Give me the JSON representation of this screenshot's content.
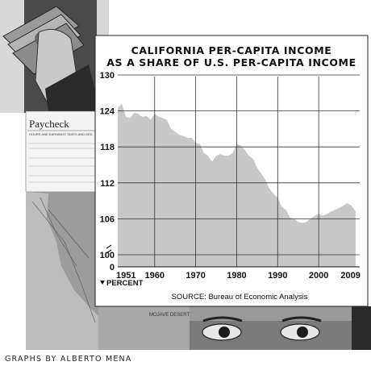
{
  "chart_data": {
    "type": "area",
    "title_lines": [
      "CALIFORNIA PER-CAPITA INCOME",
      "AS A SHARE OF U.S. PER-CAPITA INCOME"
    ],
    "y_unit_label": "PERCENT",
    "source": "SOURCE: Bureau of Economic Analysis",
    "ylim": [
      100,
      130
    ],
    "yticks": [
      100,
      106,
      112,
      118,
      124,
      130
    ],
    "y_break_label": "0",
    "xlim": [
      1951,
      2010
    ],
    "xticks": [
      1951,
      1960,
      1970,
      1980,
      1990,
      2000,
      2009
    ],
    "grid": true,
    "series": [
      {
        "x": [
          1951,
          1952,
          1953,
          1954,
          1955,
          1956,
          1957,
          1958,
          1959,
          1960,
          1961,
          1962,
          1963,
          1964,
          1965,
          1966,
          1967,
          1968,
          1969,
          1970,
          1971,
          1972,
          1973,
          1974,
          1975,
          1976,
          1977,
          1978,
          1979,
          1980,
          1981,
          1982,
          1983,
          1984,
          1985,
          1986,
          1987,
          1988,
          1989,
          1990,
          1991,
          1992,
          1993,
          1994,
          1995,
          1996,
          1997,
          1998,
          1999,
          2000,
          2001,
          2002,
          2003,
          2004,
          2005,
          2006,
          2007,
          2008,
          2009
        ],
        "values": [
          124.5,
          125.2,
          123,
          122.8,
          123.7,
          123.5,
          123,
          123.2,
          122.5,
          123.6,
          123,
          122.8,
          122.5,
          121,
          120.5,
          120,
          119.8,
          119.5,
          119.5,
          118.7,
          118.5,
          117,
          116.5,
          115.5,
          116.5,
          116.8,
          116.5,
          116.5,
          117,
          118.5,
          118.2,
          117.5,
          116.5,
          116,
          114.5,
          113.5,
          112.5,
          111,
          110.2,
          109.5,
          108,
          107.5,
          106.2,
          106,
          105.5,
          105.3,
          105.5,
          106,
          106.5,
          106.8,
          106.5,
          106.8,
          107.2,
          107.5,
          107.8,
          108.2,
          108.6,
          108.2,
          107.2
        ]
      }
    ]
  },
  "photo_labels": {
    "paycheck_title": "Paycheck",
    "paycheck_subheader": "HOURS AND EARNINGS     TAXES AND DED",
    "map_label": "MOJAVE DESERT"
  },
  "credit": "GRAPHS BY ALBERTO MENA",
  "colors": {
    "area_fill": "#c8c8c8",
    "panel_bg": "#ffffff",
    "grid": "#333333",
    "photo_dark": "#3a3a3a",
    "photo_mid": "#8a8a8a"
  }
}
